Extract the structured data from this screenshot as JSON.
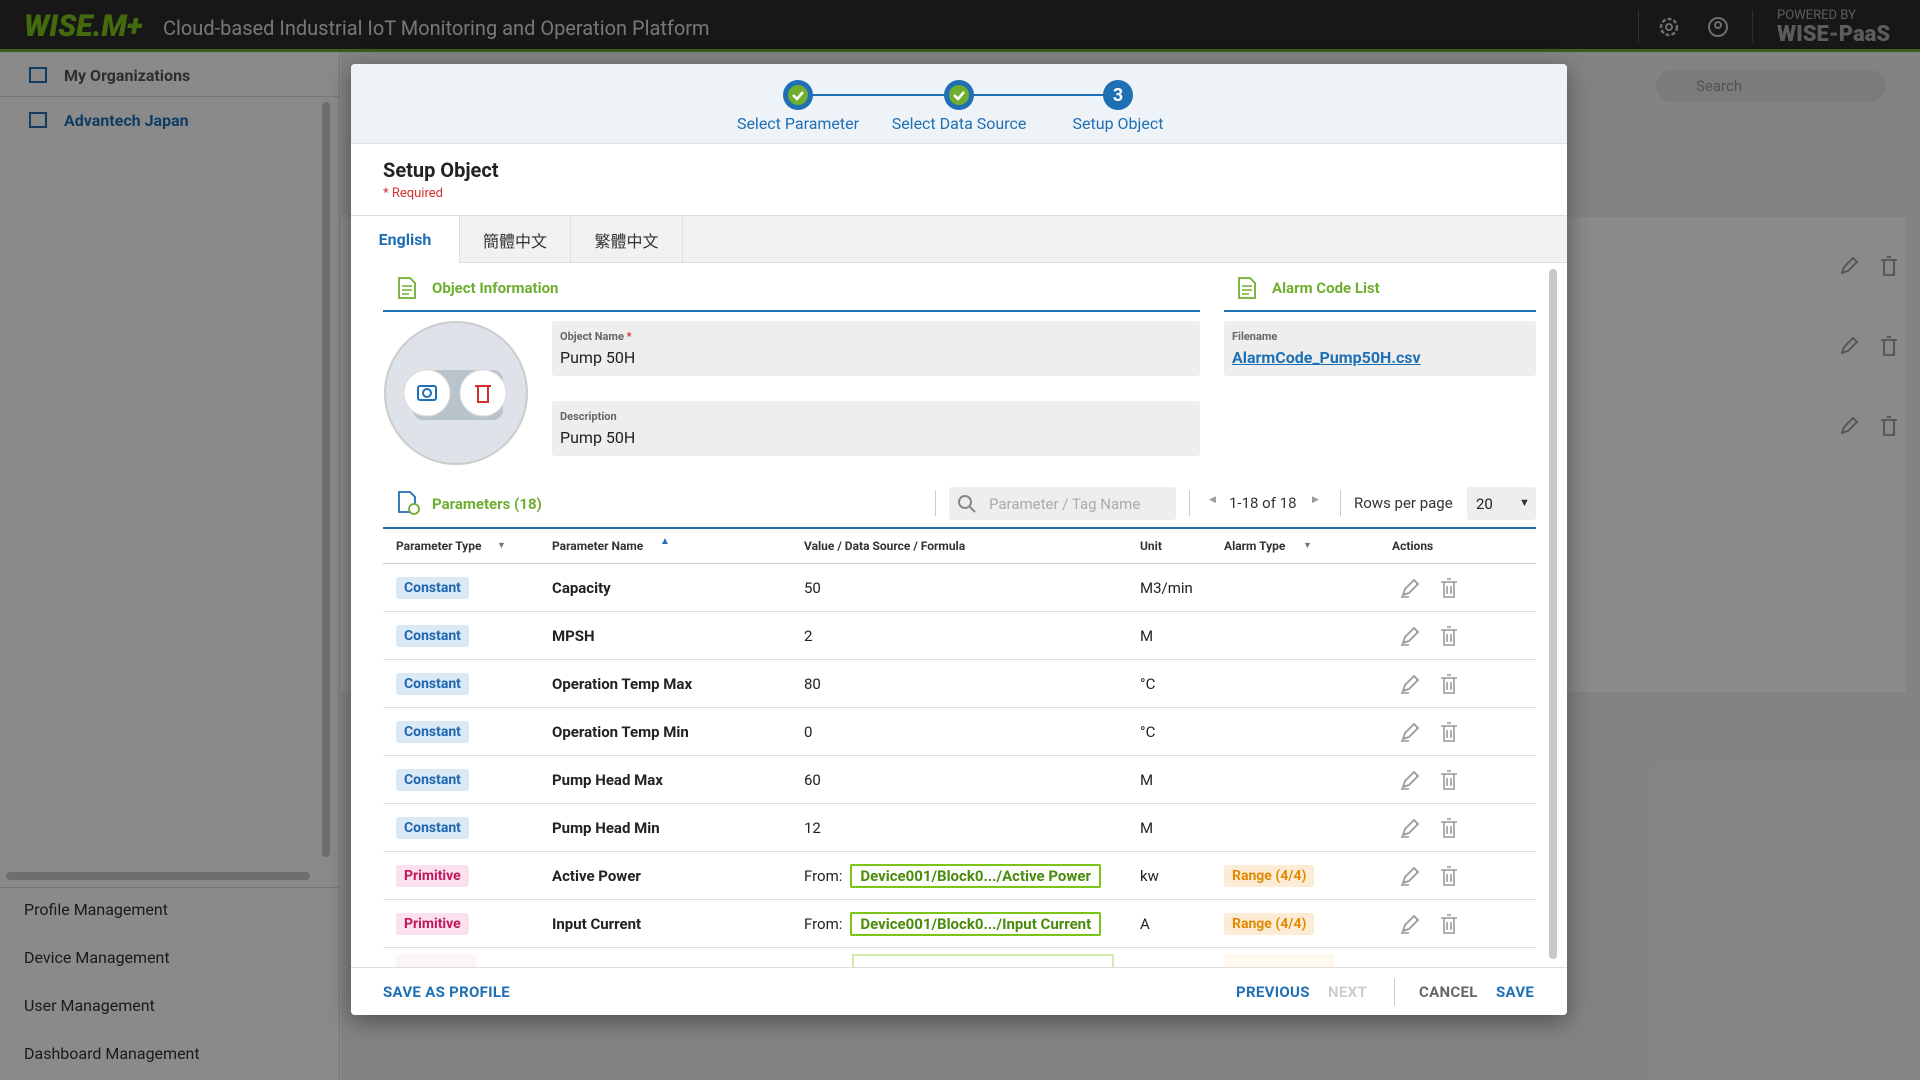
{
  "header": {
    "logo": "WISE.M+",
    "title": "Cloud-based Industrial IoT Monitoring and Operation Platform",
    "powered_by": "POWERED BY",
    "brand": "WISE-PaaS"
  },
  "sidebar": {
    "organizations": [
      "My Organizations",
      "Advantech Japan"
    ],
    "menu": [
      "Profile Management",
      "Device Management",
      "User Management",
      "Dashboard Management"
    ]
  },
  "toolbar": {
    "search_placeholder": "Search"
  },
  "dialog": {
    "steps": [
      {
        "label": "Select Parameter"
      },
      {
        "label": "Select Data Source"
      },
      {
        "label": "Setup Object",
        "number": "3"
      }
    ],
    "title": "Setup Object",
    "required_note": "* Required",
    "tabs": [
      "English",
      "簡體中文",
      "繁體中文"
    ],
    "object_information": {
      "heading": "Object Information",
      "object_name": {
        "label": "Object Name",
        "required_mark": "*",
        "value": "Pump 50H"
      },
      "description": {
        "label": "Description",
        "value": "Pump 50H"
      }
    },
    "alarm_code_list": {
      "heading": "Alarm Code List",
      "filename_label": "Filename",
      "filename": "AlarmCode_Pump50H.csv"
    },
    "parameters": {
      "heading": "Parameters (18)",
      "search_placeholder": "Parameter / Tag Name",
      "pagination": "1-18 of 18",
      "rows_per_page_label": "Rows per page",
      "rows_per_page": "20",
      "columns": [
        "Parameter Type",
        "Parameter Name",
        "Value / Data Source / Formula",
        "Unit",
        "Alarm Type",
        "Actions"
      ],
      "rows": [
        {
          "type": "Constant",
          "name": "Capacity",
          "value": "50",
          "unit": "M3/min"
        },
        {
          "type": "Constant",
          "name": "MPSH",
          "value": "2",
          "unit": "M"
        },
        {
          "type": "Constant",
          "name": "Operation Temp Max",
          "value": "80",
          "unit": "°C"
        },
        {
          "type": "Constant",
          "name": "Operation Temp Min",
          "value": "0",
          "unit": "°C"
        },
        {
          "type": "Constant",
          "name": "Pump Head Max",
          "value": "60",
          "unit": "M"
        },
        {
          "type": "Constant",
          "name": "Pump Head Min",
          "value": "12",
          "unit": "M"
        },
        {
          "type": "Primitive",
          "name": "Active Power",
          "value_prefix": "From:",
          "value": "Device001/Block0.../Active Power",
          "unit": "kw",
          "alarm": "Range (4/4)"
        },
        {
          "type": "Primitive",
          "name": "Input Current",
          "value_prefix": "From:",
          "value": "Device001/Block0.../Input Current",
          "unit": "A",
          "alarm": "Range (4/4)"
        }
      ]
    },
    "footer": {
      "save_as_profile": "SAVE AS PROFILE",
      "previous": "PREVIOUS",
      "next": "NEXT",
      "cancel": "CANCEL",
      "save": "SAVE"
    }
  }
}
